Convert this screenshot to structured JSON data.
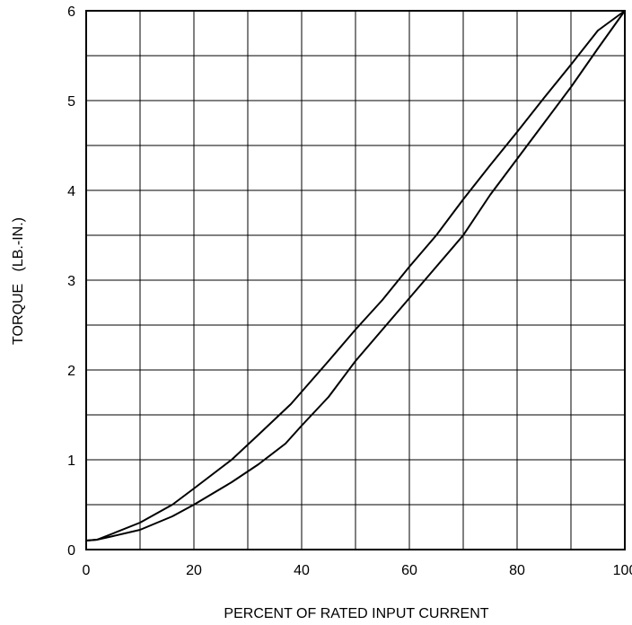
{
  "chart_data": {
    "type": "line",
    "title": "",
    "xlabel": "PERCENT OF RATED INPUT CURRENT",
    "ylabel": "TORQUE   (LB.-IN.)",
    "xlim": [
      0,
      100
    ],
    "ylim": [
      0,
      6
    ],
    "x_ticks": [
      "0",
      "20",
      "40",
      "60",
      "80",
      "100"
    ],
    "y_ticks": [
      "0",
      "1",
      "2",
      "3",
      "4",
      "5",
      "6"
    ],
    "grid": true,
    "x_grid_step": 10,
    "y_grid_step": 0.5,
    "legend": false,
    "line_color": "#000000",
    "series": [
      {
        "x": [
          0,
          2,
          5,
          10,
          16,
          20,
          27,
          32,
          38,
          45,
          50,
          55,
          60,
          65,
          70,
          75,
          80,
          85,
          90,
          95,
          100
        ],
        "y": [
          0.1,
          0.11,
          0.18,
          0.3,
          0.5,
          0.68,
          1.0,
          1.28,
          1.62,
          2.1,
          2.45,
          2.78,
          3.15,
          3.5,
          3.9,
          4.28,
          4.65,
          5.03,
          5.4,
          5.78,
          6.0
        ]
      },
      {
        "x": [
          0,
          2,
          5,
          10,
          16,
          20,
          27,
          32,
          37,
          40,
          45,
          50,
          55,
          60,
          65,
          70,
          75,
          80,
          85,
          90,
          95,
          100
        ],
        "y": [
          0.1,
          0.11,
          0.15,
          0.22,
          0.37,
          0.5,
          0.75,
          0.95,
          1.18,
          1.38,
          1.7,
          2.1,
          2.45,
          2.8,
          3.15,
          3.5,
          3.95,
          4.35,
          4.75,
          5.15,
          5.58,
          6.0
        ]
      }
    ]
  }
}
